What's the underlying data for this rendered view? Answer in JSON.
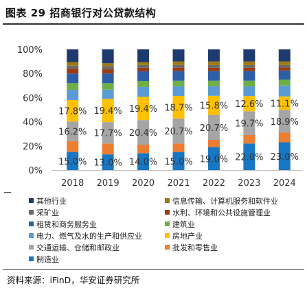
{
  "figure": {
    "title": "图表 29 招商银行对公贷款结构",
    "source": "资料来源：iFinD，华安证券研究所"
  },
  "colors": {
    "其他行业": "#1f3a6e",
    "信息传输、计算机服务和软件业": "#9c7a12",
    "采矿业": "#6a6a6a",
    "水利、环境和公共设施管理业": "#9a3c12",
    "租赁和商务服务业": "#2e5ea8",
    "建筑业": "#6fae45",
    "电力、燃气及水的生产和供应业": "#5b9bd5",
    "房地产业": "#ffc000",
    "交通运输、仓储和邮政业": "#a5a5a5",
    "批发和零售业": "#ed7d31",
    "制造业": "#1877c4"
  },
  "chart_data": {
    "type": "bar",
    "stacked": true,
    "categories": [
      "2018",
      "2019",
      "2020",
      "2021",
      "2022",
      "2023",
      "2024"
    ],
    "ylim": [
      0,
      100
    ],
    "yticks": [
      "0%",
      "20%",
      "40%",
      "60%",
      "80%",
      "100%"
    ],
    "grid": false,
    "legend_position": "bottom",
    "series": [
      {
        "name": "制造业",
        "values": [
          15.0,
          13.0,
          14.0,
          15.0,
          19.0,
          22.0,
          23.0
        ],
        "labels": [
          "15.0%",
          "13.0%",
          "14.0%",
          "15.0%",
          "19.0%",
          "22.0%",
          "23.0%"
        ]
      },
      {
        "name": "批发和零售业",
        "values": [
          9.0,
          9.0,
          7.0,
          7.0,
          6.0,
          7.0,
          8.0
        ]
      },
      {
        "name": "交通运输、仓储和邮政业",
        "values": [
          16.2,
          17.7,
          20.4,
          20.7,
          20.7,
          19.7,
          18.9
        ],
        "labels": [
          "16.2%",
          "17.7%",
          "20.4%",
          "20.7%",
          "20.7%",
          "19.7%",
          "18.9%"
        ]
      },
      {
        "name": "房地产业",
        "values": [
          17.8,
          19.4,
          19.4,
          18.7,
          15.8,
          12.6,
          11.1
        ],
        "labels": [
          "17.8%",
          "19.4%",
          "19.4%",
          "18.7%",
          "15.8%",
          "12.6%",
          "11.1%"
        ]
      },
      {
        "name": "电力、燃气及水的生产和供应业",
        "values": [
          8.5,
          7.5,
          8.0,
          8.0,
          8.0,
          8.0,
          9.0
        ]
      },
      {
        "name": "建筑业",
        "values": [
          5.5,
          5.4,
          5.0,
          4.6,
          4.5,
          4.7,
          5.0
        ]
      },
      {
        "name": "租赁和商务服务业",
        "values": [
          8.0,
          8.0,
          8.0,
          8.0,
          8.0,
          8.0,
          7.5
        ]
      },
      {
        "name": "水利、环境和公共设施管理业",
        "values": [
          4.0,
          3.5,
          3.0,
          2.8,
          2.8,
          2.8,
          2.5
        ]
      },
      {
        "name": "采矿业",
        "values": [
          2.5,
          2.5,
          2.2,
          2.2,
          2.2,
          2.2,
          2.0
        ]
      },
      {
        "name": "信息传输、计算机服务和软件业",
        "values": [
          3.0,
          2.5,
          2.5,
          3.0,
          3.0,
          3.0,
          3.0
        ]
      },
      {
        "name": "其他行业",
        "values": [
          10.5,
          11.5,
          10.5,
          10.0,
          10.0,
          10.0,
          10.0
        ]
      }
    ]
  },
  "legend_order": [
    "其他行业",
    "信息传输、计算机服务和软件业",
    "采矿业",
    "水利、环境和公共设施管理业",
    "租赁和商务服务业",
    "建筑业",
    "电力、燃气及水的生产和供应业",
    "房地产业",
    "交通运输、仓储和邮政业",
    "批发和零售业",
    "制造业"
  ]
}
